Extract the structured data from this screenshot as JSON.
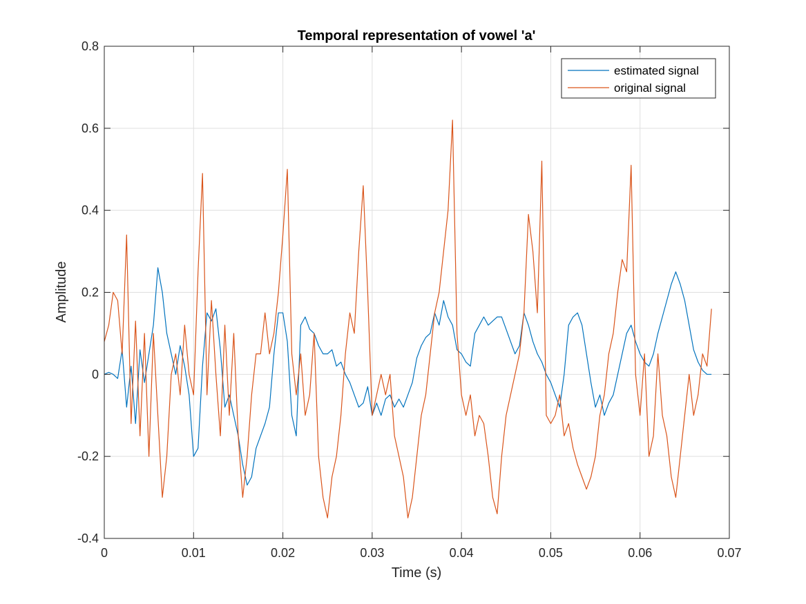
{
  "chart_data": {
    "type": "line",
    "title": "Temporal representation of vowel 'a'",
    "xlabel": "Time (s)",
    "ylabel": "Amplitude",
    "xlim": [
      0,
      0.07
    ],
    "ylim": [
      -0.4,
      0.8
    ],
    "xticks": [
      0,
      0.01,
      0.02,
      0.03,
      0.04,
      0.05,
      0.06,
      0.07
    ],
    "xtick_labels": [
      "0",
      "0.01",
      "0.02",
      "0.03",
      "0.04",
      "0.05",
      "0.06",
      "0.07"
    ],
    "yticks": [
      -0.4,
      -0.2,
      0,
      0.2,
      0.4,
      0.6,
      0.8
    ],
    "ytick_labels": [
      "-0.4",
      "-0.2",
      "0",
      "0.2",
      "0.4",
      "0.6",
      "0.8"
    ],
    "grid": true,
    "legend_position": "top-right",
    "series": [
      {
        "name": "estimated signal",
        "color": "#0072BD",
        "x": [
          0,
          0.0005,
          0.001,
          0.0015,
          0.002,
          0.0025,
          0.003,
          0.0035,
          0.004,
          0.0045,
          0.005,
          0.0055,
          0.006,
          0.0065,
          0.007,
          0.0075,
          0.008,
          0.0085,
          0.009,
          0.0095,
          0.01,
          0.0105,
          0.011,
          0.0115,
          0.012,
          0.0125,
          0.013,
          0.0135,
          0.014,
          0.0145,
          0.015,
          0.0155,
          0.016,
          0.0165,
          0.017,
          0.0175,
          0.018,
          0.0185,
          0.019,
          0.0195,
          0.02,
          0.0205,
          0.021,
          0.0215,
          0.022,
          0.0225,
          0.023,
          0.0235,
          0.024,
          0.0245,
          0.025,
          0.0255,
          0.026,
          0.0265,
          0.027,
          0.0275,
          0.028,
          0.0285,
          0.029,
          0.0295,
          0.03,
          0.0305,
          0.031,
          0.0315,
          0.032,
          0.0325,
          0.033,
          0.0335,
          0.034,
          0.0345,
          0.035,
          0.0355,
          0.036,
          0.0365,
          0.037,
          0.0375,
          0.038,
          0.0385,
          0.039,
          0.0395,
          0.04,
          0.0405,
          0.041,
          0.0415,
          0.042,
          0.0425,
          0.043,
          0.0435,
          0.044,
          0.0445,
          0.045,
          0.0455,
          0.046,
          0.0465,
          0.047,
          0.0475,
          0.048,
          0.0485,
          0.049,
          0.0495,
          0.05,
          0.0505,
          0.051,
          0.0515,
          0.052,
          0.0525,
          0.053,
          0.0535,
          0.054,
          0.0545,
          0.055,
          0.0555,
          0.056,
          0.0565,
          0.057,
          0.0575,
          0.058,
          0.0585,
          0.059,
          0.0595,
          0.06,
          0.0605,
          0.061,
          0.0615,
          0.062,
          0.0625,
          0.063,
          0.0635,
          0.064,
          0.0645,
          0.065,
          0.0655,
          0.066,
          0.0665,
          0.067,
          0.0675,
          0.068
        ],
        "y": [
          0.0,
          0.005,
          0.0,
          -0.01,
          0.06,
          -0.08,
          0.02,
          -0.12,
          0.06,
          -0.02,
          0.05,
          0.12,
          0.26,
          0.2,
          0.1,
          0.05,
          0.0,
          0.07,
          0.02,
          -0.05,
          -0.2,
          -0.18,
          0.02,
          0.15,
          0.13,
          0.16,
          0.06,
          -0.08,
          -0.05,
          -0.1,
          -0.15,
          -0.22,
          -0.27,
          -0.25,
          -0.18,
          -0.15,
          -0.12,
          -0.08,
          0.05,
          0.15,
          0.15,
          0.08,
          -0.1,
          -0.15,
          0.12,
          0.14,
          0.11,
          0.1,
          0.07,
          0.05,
          0.05,
          0.06,
          0.02,
          0.03,
          0.0,
          -0.02,
          -0.05,
          -0.08,
          -0.07,
          -0.03,
          -0.1,
          -0.07,
          -0.1,
          -0.06,
          -0.05,
          -0.08,
          -0.06,
          -0.08,
          -0.05,
          -0.02,
          0.04,
          0.07,
          0.09,
          0.1,
          0.15,
          0.12,
          0.18,
          0.14,
          0.12,
          0.06,
          0.05,
          0.03,
          0.02,
          0.1,
          0.12,
          0.14,
          0.12,
          0.13,
          0.14,
          0.14,
          0.11,
          0.08,
          0.05,
          0.07,
          0.15,
          0.12,
          0.08,
          0.05,
          0.03,
          0.0,
          -0.02,
          -0.05,
          -0.08,
          0.0,
          0.12,
          0.14,
          0.15,
          0.12,
          0.05,
          -0.02,
          -0.08,
          -0.05,
          -0.1,
          -0.07,
          -0.05,
          0.0,
          0.05,
          0.1,
          0.12,
          0.08,
          0.05,
          0.03,
          0.02,
          0.05,
          0.1,
          0.14,
          0.18,
          0.22,
          0.25,
          0.22,
          0.18,
          0.12,
          0.06,
          0.03,
          0.01,
          0.0,
          0.0
        ]
      },
      {
        "name": "original signal",
        "color": "#D95319",
        "x": [
          0,
          0.0005,
          0.001,
          0.0015,
          0.002,
          0.0025,
          0.003,
          0.0035,
          0.004,
          0.0045,
          0.005,
          0.0055,
          0.006,
          0.0065,
          0.007,
          0.0075,
          0.008,
          0.0085,
          0.009,
          0.0095,
          0.01,
          0.0105,
          0.011,
          0.0115,
          0.012,
          0.0125,
          0.013,
          0.0135,
          0.014,
          0.0145,
          0.015,
          0.0155,
          0.016,
          0.0165,
          0.017,
          0.0175,
          0.018,
          0.0185,
          0.019,
          0.0195,
          0.02,
          0.0205,
          0.021,
          0.0215,
          0.022,
          0.0225,
          0.023,
          0.0235,
          0.024,
          0.0245,
          0.025,
          0.0255,
          0.026,
          0.0265,
          0.027,
          0.0275,
          0.028,
          0.0285,
          0.029,
          0.0295,
          0.03,
          0.0305,
          0.031,
          0.0315,
          0.032,
          0.0325,
          0.033,
          0.0335,
          0.034,
          0.0345,
          0.035,
          0.0355,
          0.036,
          0.0365,
          0.037,
          0.0375,
          0.038,
          0.0385,
          0.039,
          0.0395,
          0.04,
          0.0405,
          0.041,
          0.0415,
          0.042,
          0.0425,
          0.043,
          0.0435,
          0.044,
          0.0445,
          0.045,
          0.0455,
          0.046,
          0.0465,
          0.047,
          0.0475,
          0.048,
          0.0485,
          0.049,
          0.0495,
          0.05,
          0.0505,
          0.051,
          0.0515,
          0.052,
          0.0525,
          0.053,
          0.0535,
          0.054,
          0.0545,
          0.055,
          0.0555,
          0.056,
          0.0565,
          0.057,
          0.0575,
          0.058,
          0.0585,
          0.059,
          0.0595,
          0.06,
          0.0605,
          0.061,
          0.0615,
          0.062,
          0.0625,
          0.063,
          0.0635,
          0.064,
          0.0645,
          0.065,
          0.0655,
          0.066,
          0.0665,
          0.067,
          0.0675,
          0.068
        ],
        "y": [
          0.08,
          0.12,
          0.2,
          0.18,
          0.05,
          0.34,
          -0.12,
          0.13,
          -0.15,
          0.1,
          -0.2,
          0.1,
          -0.1,
          -0.3,
          -0.2,
          0.0,
          0.05,
          -0.05,
          0.12,
          0.0,
          -0.05,
          0.25,
          0.49,
          -0.05,
          0.18,
          0.0,
          -0.15,
          0.12,
          -0.1,
          0.1,
          -0.15,
          -0.3,
          -0.2,
          -0.05,
          0.05,
          0.05,
          0.15,
          0.05,
          0.1,
          0.2,
          0.34,
          0.5,
          0.05,
          -0.05,
          0.05,
          -0.1,
          -0.05,
          0.1,
          -0.2,
          -0.3,
          -0.35,
          -0.25,
          -0.2,
          -0.1,
          0.05,
          0.15,
          0.1,
          0.3,
          0.46,
          0.2,
          -0.1,
          -0.05,
          0.0,
          -0.05,
          0.0,
          -0.15,
          -0.2,
          -0.25,
          -0.35,
          -0.3,
          -0.2,
          -0.1,
          -0.05,
          0.05,
          0.15,
          0.2,
          0.3,
          0.4,
          0.62,
          0.1,
          -0.05,
          -0.1,
          -0.05,
          -0.15,
          -0.1,
          -0.12,
          -0.2,
          -0.3,
          -0.34,
          -0.2,
          -0.1,
          -0.05,
          0.0,
          0.05,
          0.15,
          0.39,
          0.3,
          0.15,
          0.52,
          -0.1,
          -0.12,
          -0.1,
          -0.05,
          -0.15,
          -0.12,
          -0.18,
          -0.22,
          -0.25,
          -0.28,
          -0.25,
          -0.2,
          -0.1,
          -0.05,
          0.05,
          0.1,
          0.2,
          0.28,
          0.25,
          0.51,
          0.0,
          -0.1,
          0.05,
          -0.2,
          -0.15,
          0.05,
          -0.1,
          -0.15,
          -0.25,
          -0.3,
          -0.2,
          -0.1,
          0.0,
          -0.1,
          -0.05,
          0.05,
          0.02,
          0.16
        ]
      }
    ]
  }
}
